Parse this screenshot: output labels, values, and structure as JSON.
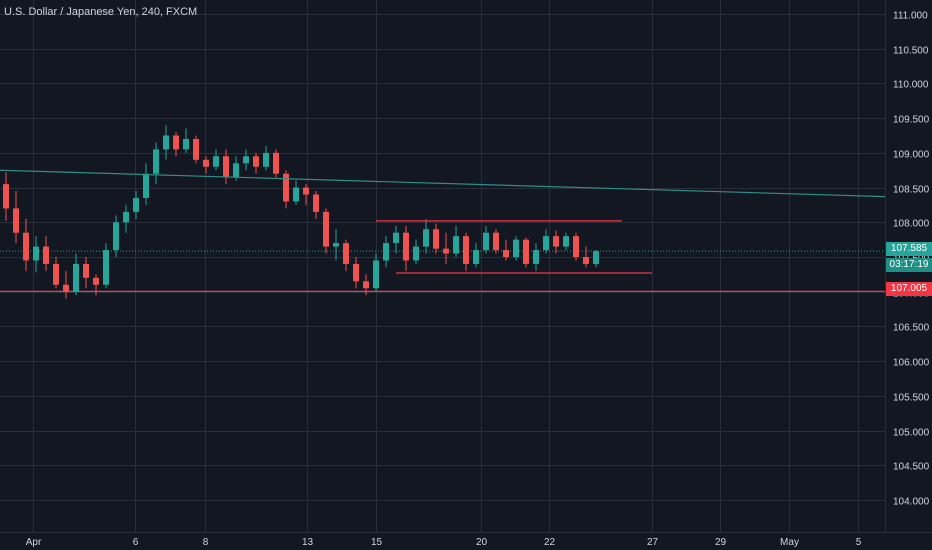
{
  "chart_data": {
    "type": "candlestick",
    "title": "U.S. Dollar / Japanese Yen, 240, FXCM",
    "ylim": [
      103.5,
      111.4
    ],
    "y_ticks": [
      "111.000",
      "110.500",
      "110.000",
      "109.500",
      "109.000",
      "108.500",
      "108.000",
      "107.500",
      "107.000",
      "106.500",
      "106.000",
      "105.500",
      "105.000",
      "104.500",
      "104.000"
    ],
    "y_tick_values": [
      111.0,
      110.5,
      110.0,
      109.5,
      109.0,
      108.5,
      108.0,
      107.5,
      107.0,
      106.5,
      106.0,
      105.5,
      105.0,
      104.5,
      104.0
    ],
    "x_ticks": [
      "Apr",
      "6",
      "8",
      "13",
      "15",
      "20",
      "22",
      "27",
      "29",
      "May",
      "5"
    ],
    "colors": {
      "background": "#131722",
      "up": "#26a69a",
      "down": "#ef5350",
      "trendline": "#2f8f85",
      "channel": "#f23645",
      "grid": "#2a2e39"
    },
    "last_price": "107.585",
    "countdown": "03:17:19",
    "horizontal_level": "107.005",
    "trendline": {
      "start": 108.75,
      "end": 108.37
    },
    "channel": {
      "upper": 108.02,
      "lower": 107.27
    },
    "candles": [
      [
        108.55,
        108.72,
        108.02,
        108.2
      ],
      [
        108.2,
        108.45,
        107.7,
        107.85
      ],
      [
        107.85,
        108.05,
        107.3,
        107.45
      ],
      [
        107.45,
        107.8,
        107.28,
        107.65
      ],
      [
        107.65,
        107.8,
        107.3,
        107.4
      ],
      [
        107.4,
        107.5,
        107.05,
        107.1
      ],
      [
        107.1,
        107.3,
        106.9,
        107.0
      ],
      [
        107.0,
        107.55,
        106.95,
        107.4
      ],
      [
        107.4,
        107.5,
        107.05,
        107.2
      ],
      [
        107.2,
        107.25,
        106.95,
        107.1
      ],
      [
        107.1,
        107.7,
        107.05,
        107.6
      ],
      [
        107.6,
        108.1,
        107.5,
        108.0
      ],
      [
        108.0,
        108.25,
        107.85,
        108.15
      ],
      [
        108.15,
        108.45,
        108.05,
        108.35
      ],
      [
        108.35,
        108.85,
        108.25,
        108.7
      ],
      [
        108.7,
        109.15,
        108.55,
        109.05
      ],
      [
        109.05,
        109.4,
        108.9,
        109.25
      ],
      [
        109.25,
        109.3,
        108.95,
        109.05
      ],
      [
        109.05,
        109.35,
        109.0,
        109.2
      ],
      [
        109.2,
        109.25,
        108.85,
        108.9
      ],
      [
        108.9,
        108.95,
        108.7,
        108.8
      ],
      [
        108.8,
        109.05,
        108.75,
        108.95
      ],
      [
        108.95,
        109.05,
        108.55,
        108.65
      ],
      [
        108.65,
        108.95,
        108.6,
        108.85
      ],
      [
        108.85,
        109.05,
        108.75,
        108.95
      ],
      [
        108.95,
        109.0,
        108.7,
        108.8
      ],
      [
        108.8,
        109.1,
        108.75,
        109.0
      ],
      [
        109.0,
        109.05,
        108.65,
        108.7
      ],
      [
        108.7,
        108.75,
        108.2,
        108.3
      ],
      [
        108.3,
        108.6,
        108.25,
        108.5
      ],
      [
        108.5,
        108.55,
        108.25,
        108.4
      ],
      [
        108.4,
        108.45,
        108.05,
        108.15
      ],
      [
        108.15,
        108.2,
        107.55,
        107.65
      ],
      [
        107.65,
        107.9,
        107.45,
        107.7
      ],
      [
        107.7,
        107.75,
        107.3,
        107.4
      ],
      [
        107.4,
        107.5,
        107.05,
        107.15
      ],
      [
        107.15,
        107.25,
        106.95,
        107.05
      ],
      [
        107.05,
        107.55,
        107.0,
        107.45
      ],
      [
        107.45,
        107.8,
        107.35,
        107.7
      ],
      [
        107.7,
        107.95,
        107.55,
        107.85
      ],
      [
        107.85,
        107.95,
        107.3,
        107.45
      ],
      [
        107.45,
        107.75,
        107.4,
        107.65
      ],
      [
        107.65,
        108.05,
        107.55,
        107.9
      ],
      [
        107.9,
        107.98,
        107.55,
        107.62
      ],
      [
        107.62,
        107.85,
        107.4,
        107.55
      ],
      [
        107.55,
        107.95,
        107.5,
        107.8
      ],
      [
        107.8,
        107.85,
        107.3,
        107.4
      ],
      [
        107.4,
        107.7,
        107.35,
        107.6
      ],
      [
        107.6,
        107.95,
        107.55,
        107.85
      ],
      [
        107.85,
        107.9,
        107.55,
        107.6
      ],
      [
        107.6,
        107.75,
        107.45,
        107.5
      ],
      [
        107.5,
        107.8,
        107.45,
        107.75
      ],
      [
        107.75,
        107.78,
        107.35,
        107.4
      ],
      [
        107.4,
        107.7,
        107.3,
        107.6
      ],
      [
        107.6,
        107.9,
        107.55,
        107.8
      ],
      [
        107.8,
        107.88,
        107.55,
        107.65
      ],
      [
        107.65,
        107.85,
        107.6,
        107.8
      ],
      [
        107.8,
        107.85,
        107.45,
        107.5
      ],
      [
        107.5,
        107.65,
        107.35,
        107.4
      ],
      [
        107.4,
        107.6,
        107.35,
        107.585
      ]
    ]
  }
}
